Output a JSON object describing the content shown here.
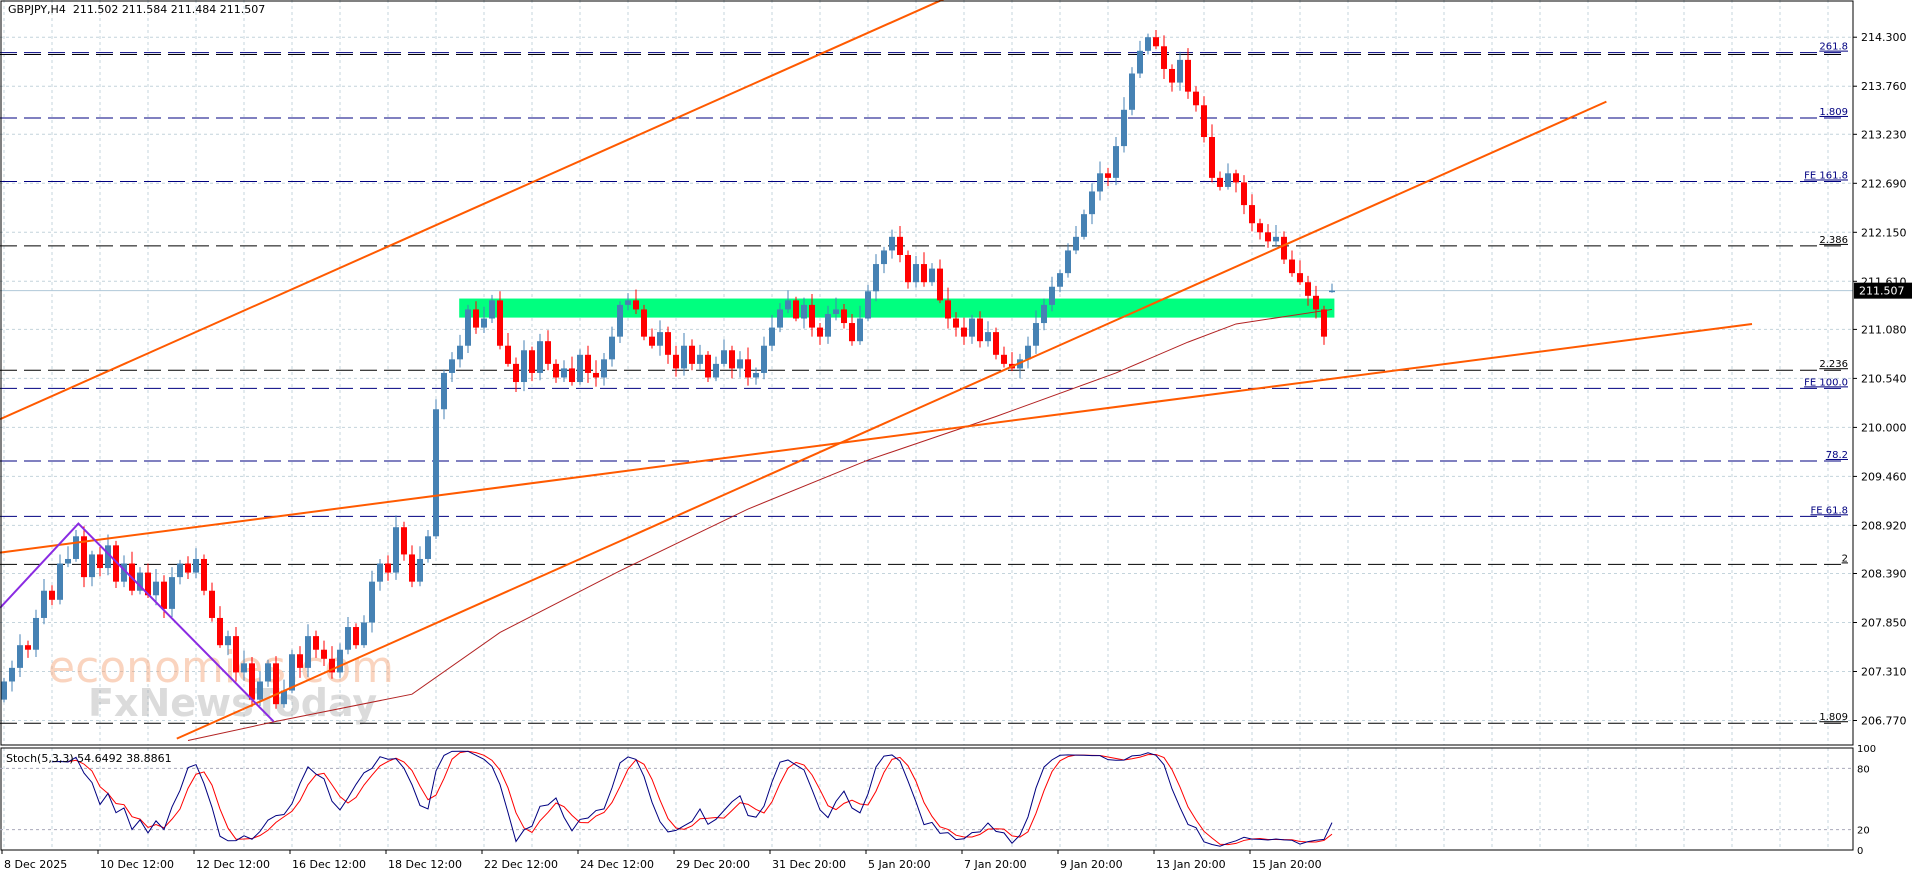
{
  "header": {
    "symbol": "GBPJPY,H4",
    "ohlc": "211.502 211.584 211.484 211.507"
  },
  "stoch_label": {
    "name": "Stoch(5,3,3)",
    "k": "54.6492",
    "d": "38.8861"
  },
  "watermark": {
    "line1": "economies.com",
    "line2": "FxNewsToday"
  },
  "colors": {
    "bull": "#4682b4",
    "bear": "#ff0000",
    "trendline": "#ff5a00",
    "ma": "#b22222",
    "zigzag": "#8a2be2",
    "zone": "#00ff7f",
    "fib_navy": "#000080",
    "fib_black": "#000000",
    "stoch_k": "#000080",
    "stoch_d": "#ff0000",
    "grid": "#c4d4dc"
  },
  "chart_data": {
    "type": "candlestick",
    "title": "GBPJPY,H4",
    "ylim": [
      206.5,
      214.71
    ],
    "grid": true,
    "y_ticks": [
      "214.300",
      "213.760",
      "213.230",
      "212.690",
      "212.150",
      "211.610",
      "211.080",
      "210.540",
      "210.000",
      "209.460",
      "208.920",
      "208.390",
      "207.850",
      "207.310",
      "206.770"
    ],
    "x_tick_every_bars": 12,
    "x_ticks": [
      "8 Dec 2025",
      "10 Dec 12:00",
      "12 Dec 12:00",
      "16 Dec 12:00",
      "18 Dec 12:00",
      "22 Dec 12:00",
      "24 Dec 12:00",
      "29 Dec 20:00",
      "31 Dec 20:00",
      "5 Jan 20:00",
      "7 Jan 20:00",
      "9 Jan 20:00",
      "13 Jan 20:00",
      "15 Jan 20:00"
    ],
    "current_price": "211.507",
    "last_bar": {
      "open": 211.502,
      "high": 211.584,
      "low": 211.484,
      "close": 211.507
    },
    "closes": [
      207.2,
      207.35,
      207.6,
      207.55,
      207.9,
      208.2,
      208.1,
      208.5,
      208.55,
      208.8,
      208.35,
      208.6,
      208.45,
      208.7,
      208.3,
      208.5,
      208.2,
      208.4,
      208.15,
      208.3,
      208.0,
      208.35,
      208.5,
      208.4,
      208.55,
      208.2,
      207.9,
      207.6,
      207.7,
      207.3,
      207.4,
      207.0,
      207.2,
      207.4,
      206.95,
      207.1,
      207.5,
      207.35,
      207.7,
      207.55,
      207.45,
      207.3,
      207.55,
      207.8,
      207.6,
      207.85,
      208.3,
      208.5,
      208.4,
      208.9,
      208.6,
      208.3,
      208.55,
      208.8,
      210.2,
      210.6,
      210.75,
      210.9,
      211.3,
      211.1,
      211.2,
      211.4,
      210.9,
      210.7,
      210.5,
      210.85,
      210.6,
      210.95,
      210.7,
      210.55,
      210.65,
      210.5,
      210.8,
      210.6,
      210.55,
      210.75,
      211.0,
      211.35,
      211.4,
      211.3,
      211.0,
      210.9,
      211.05,
      210.8,
      210.65,
      210.9,
      210.7,
      210.8,
      210.55,
      210.7,
      210.85,
      210.65,
      210.75,
      210.55,
      210.6,
      210.9,
      211.1,
      211.3,
      211.4,
      211.2,
      211.35,
      211.1,
      211.0,
      211.25,
      211.3,
      211.15,
      210.95,
      211.2,
      211.5,
      211.8,
      211.95,
      212.1,
      211.9,
      211.6,
      211.8,
      211.6,
      211.75,
      211.4,
      211.2,
      211.1,
      211.0,
      211.2,
      210.95,
      211.05,
      210.8,
      210.7,
      210.65,
      210.75,
      210.9,
      211.15,
      211.35,
      211.55,
      211.7,
      211.95,
      212.1,
      212.35,
      212.6,
      212.8,
      212.75,
      213.1,
      213.5,
      213.9,
      214.15,
      214.3,
      214.2,
      213.95,
      213.8,
      214.05,
      213.7,
      213.55,
      213.2,
      212.75,
      212.65,
      212.8,
      212.7,
      212.45,
      212.25,
      212.15,
      212.05,
      212.1,
      211.85,
      211.7,
      211.6,
      211.45,
      211.3,
      211.0,
      211.507
    ],
    "moving_average": [
      [
        23,
        206.55
      ],
      [
        34,
        206.76
      ],
      [
        51,
        207.06
      ],
      [
        62,
        207.74
      ],
      [
        77,
        208.42
      ],
      [
        93,
        209.1
      ],
      [
        108,
        209.64
      ],
      [
        124,
        210.12
      ],
      [
        139,
        210.6
      ],
      [
        148,
        210.94
      ],
      [
        154,
        211.14
      ],
      [
        166,
        211.3
      ]
    ],
    "trendlines": [
      {
        "from": [
          -0.5,
          210.09
        ],
        "to": [
          119,
          214.78
        ]
      },
      {
        "from": [
          21.6,
          206.57
        ],
        "to": [
          200.3,
          213.59
        ]
      },
      {
        "from": [
          -0.5,
          208.62
        ],
        "to": [
          218.5,
          211.14
        ]
      }
    ],
    "zigzag": [
      [
        -0.5,
        208.01
      ],
      [
        9.3,
        208.94
      ],
      [
        33.7,
        206.76
      ]
    ],
    "zone": {
      "from_bar": 56.9,
      "to_bar": 166.3,
      "low": 211.21,
      "high": 211.42
    },
    "levels": [
      {
        "label": "261.8",
        "price": 214.13,
        "color": "navy"
      },
      {
        "label": "",
        "price": 214.11,
        "color": "black"
      },
      {
        "label": "1.809",
        "price": 213.41,
        "color": "navy"
      },
      {
        "label": "FE 161.8",
        "price": 212.71,
        "color": "navy"
      },
      {
        "label": "2.386",
        "price": 212.0,
        "color": "black"
      },
      {
        "label": "2.236",
        "price": 210.63,
        "color": "black"
      },
      {
        "label": "FE 100.0",
        "price": 210.43,
        "color": "navy"
      },
      {
        "label": "78.2",
        "price": 209.63,
        "color": "navy"
      },
      {
        "label": "FE 61.8",
        "price": 209.02,
        "color": "navy"
      },
      {
        "label": "2",
        "price": 208.49,
        "color": "black"
      },
      {
        "label": "1.809",
        "price": 206.74,
        "color": "black"
      }
    ],
    "stochastic": {
      "k_period": 5,
      "d_period": 3,
      "slowing": 3,
      "ylim": [
        0,
        100
      ],
      "levels": [
        20,
        80
      ],
      "y_ticks": [
        "100",
        "80",
        "20",
        "0"
      ]
    }
  }
}
